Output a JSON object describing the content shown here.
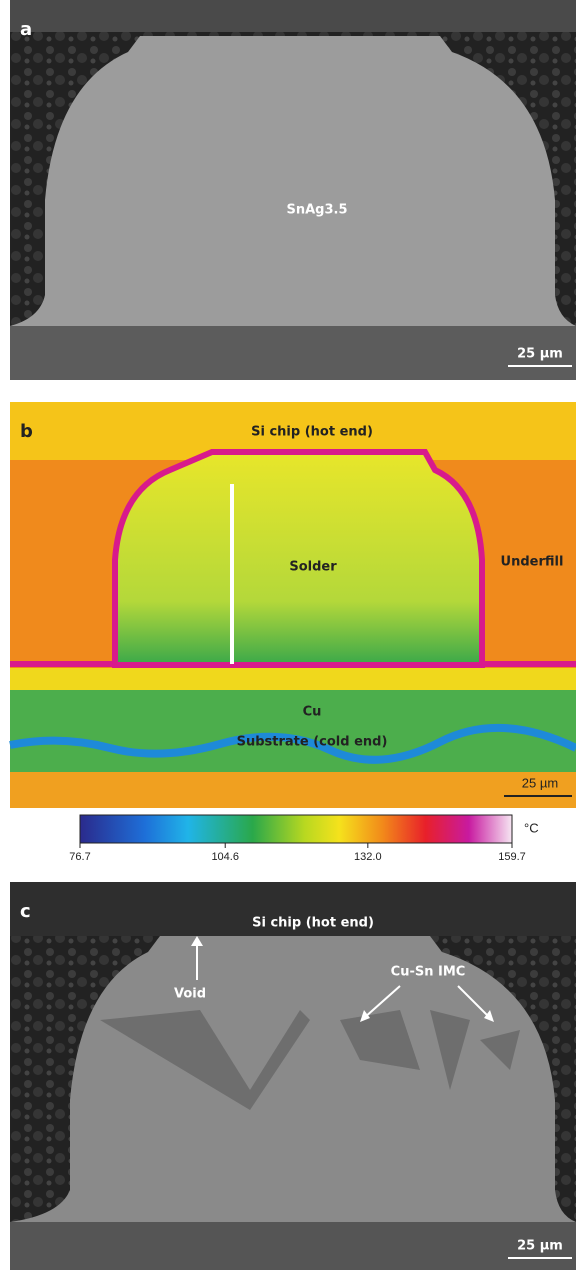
{
  "panel_a": {
    "label": "a",
    "annotation": "SnAg3.5",
    "scale_bar": "25 µm"
  },
  "panel_b": {
    "label": "b",
    "chip": "Si chip (hot end)",
    "solder": "Solder",
    "underfill": "Underfill",
    "cu": "Cu",
    "substrate": "Substrate (cold end)",
    "scale_bar": "25 µm",
    "colorbar": {
      "range": [
        76.7,
        159.7
      ],
      "ticks": [
        76.7,
        104.6,
        {
          "value": 132,
          "label": "132.0"
        },
        159.7
      ],
      "unit": "°C"
    }
  },
  "panel_c": {
    "label": "c",
    "chip": "Si chip (hot end)",
    "void": "Void",
    "imc": "Cu-Sn IMC",
    "scale_bar": "25 µm"
  }
}
